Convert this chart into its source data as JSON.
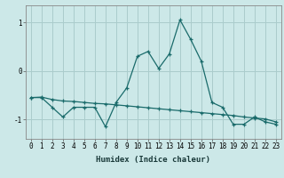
{
  "xlabel": "Humidex (Indice chaleur)",
  "bg_color": "#cce8e8",
  "grid_color": "#aacccc",
  "line_color": "#1a6b6b",
  "x": [
    0,
    1,
    2,
    3,
    4,
    5,
    6,
    7,
    8,
    9,
    10,
    11,
    12,
    13,
    14,
    15,
    16,
    17,
    18,
    19,
    20,
    21,
    22,
    23
  ],
  "line1": [
    -0.55,
    -0.55,
    -0.75,
    -0.95,
    -0.75,
    -0.75,
    -0.75,
    -1.15,
    -0.65,
    -0.35,
    0.3,
    0.4,
    0.05,
    0.35,
    1.05,
    0.65,
    0.2,
    -0.65,
    -0.75,
    -1.1,
    -1.1,
    -0.95,
    -1.05,
    -1.1
  ],
  "line2": [
    -0.55,
    -0.54,
    -0.59,
    -0.62,
    -0.63,
    -0.65,
    -0.67,
    -0.68,
    -0.7,
    -0.72,
    -0.74,
    -0.76,
    -0.78,
    -0.8,
    -0.82,
    -0.84,
    -0.86,
    -0.88,
    -0.9,
    -0.92,
    -0.95,
    -0.97,
    -0.99,
    -1.05
  ],
  "yticks": [
    -1,
    0,
    1
  ],
  "ylim": [
    -1.4,
    1.35
  ],
  "xlim": [
    -0.5,
    23.5
  ]
}
